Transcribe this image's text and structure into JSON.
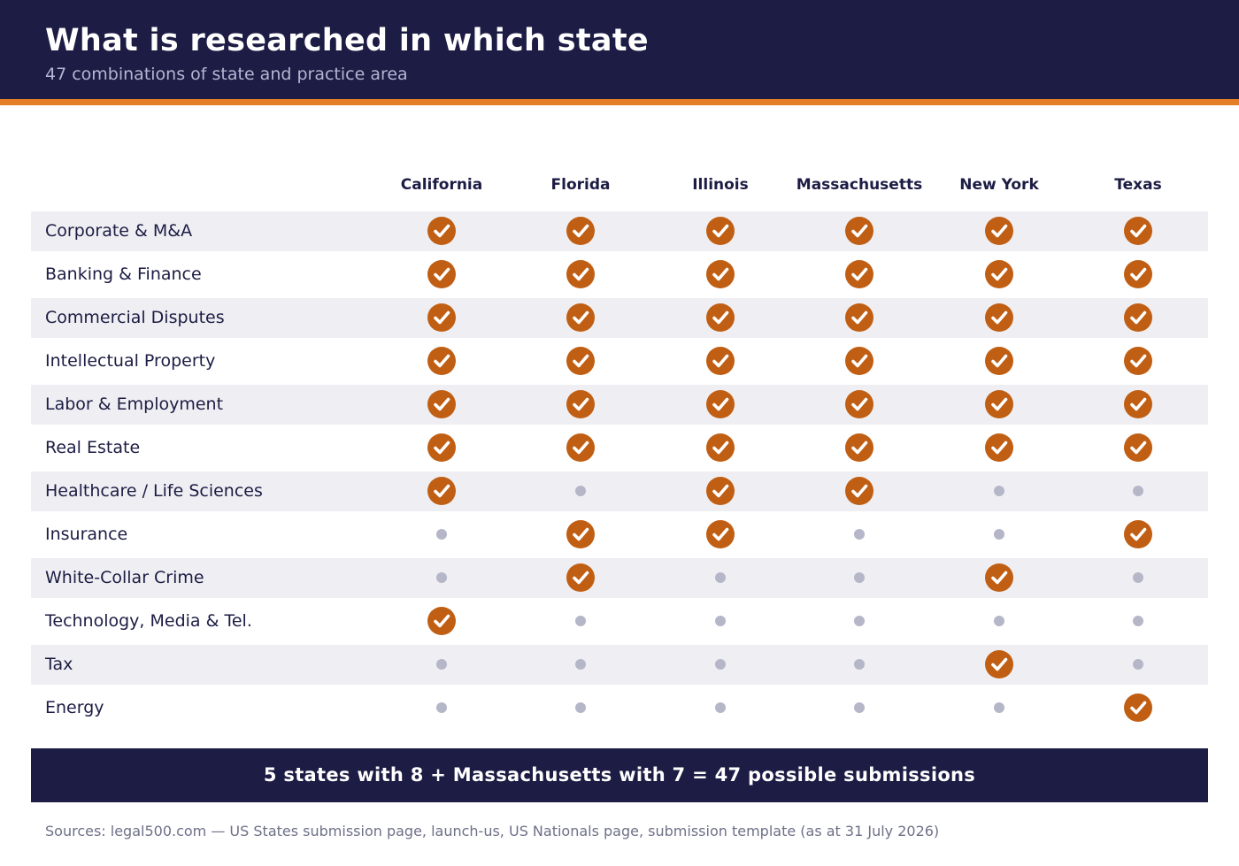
{
  "header": {
    "title": "What is researched in which state",
    "subtitle": "47 combinations of state and practice area"
  },
  "colors": {
    "navy": "#1c1c44",
    "accent_orange": "#e47f26",
    "check_fill": "#c05f14",
    "dot_gray": "#b5b6c8",
    "row_shade": "#efeff3"
  },
  "states": [
    "California",
    "Florida",
    "Illinois",
    "Massachusetts",
    "New York",
    "Texas"
  ],
  "practice_areas": [
    {
      "label": "Corporate & M&A",
      "researched": [
        true,
        true,
        true,
        true,
        true,
        true
      ]
    },
    {
      "label": "Banking & Finance",
      "researched": [
        true,
        true,
        true,
        true,
        true,
        true
      ]
    },
    {
      "label": "Commercial Disputes",
      "researched": [
        true,
        true,
        true,
        true,
        true,
        true
      ]
    },
    {
      "label": "Intellectual Property",
      "researched": [
        true,
        true,
        true,
        true,
        true,
        true
      ]
    },
    {
      "label": "Labor & Employment",
      "researched": [
        true,
        true,
        true,
        true,
        true,
        true
      ]
    },
    {
      "label": "Real Estate",
      "researched": [
        true,
        true,
        true,
        true,
        true,
        true
      ]
    },
    {
      "label": "Healthcare / Life Sciences",
      "researched": [
        true,
        false,
        true,
        true,
        false,
        false
      ]
    },
    {
      "label": "Insurance",
      "researched": [
        false,
        true,
        true,
        false,
        false,
        true
      ]
    },
    {
      "label": "White-Collar Crime",
      "researched": [
        false,
        true,
        false,
        false,
        true,
        false
      ]
    },
    {
      "label": "Technology, Media & Tel.",
      "researched": [
        true,
        false,
        false,
        false,
        false,
        false
      ]
    },
    {
      "label": "Tax",
      "researched": [
        false,
        false,
        false,
        false,
        true,
        false
      ]
    },
    {
      "label": "Energy",
      "researched": [
        false,
        false,
        false,
        false,
        false,
        true
      ]
    }
  ],
  "legend_icons": {
    "researched": "check-circle-icon",
    "not_researched": "dot-icon"
  },
  "summary": "5 states with 8 + Massachusetts with 7 = 47 possible submissions",
  "sources": "Sources: legal500.com — US States submission page, launch-us, US Nationals page, submission template (as at 31 July 2026)"
}
